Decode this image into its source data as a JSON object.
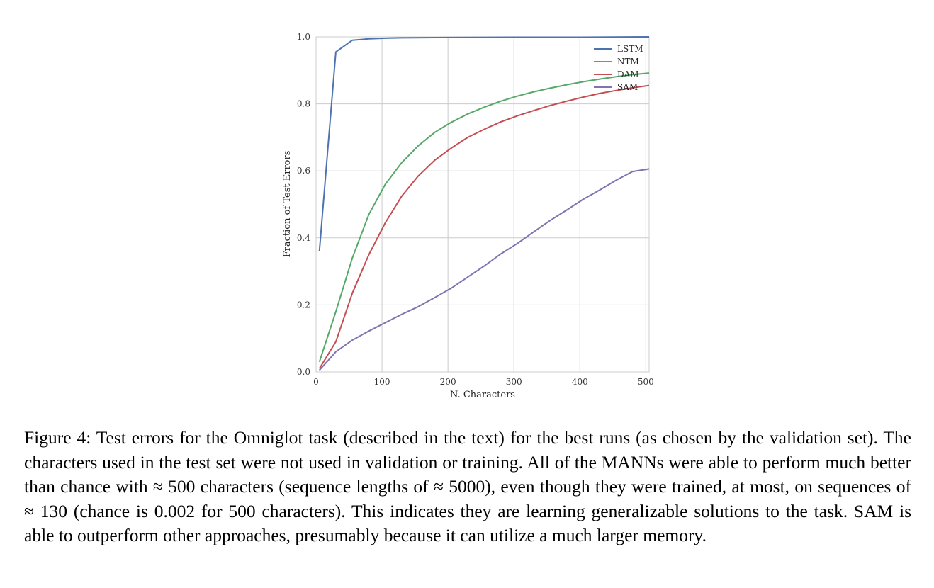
{
  "chart_data": {
    "type": "line",
    "title": "",
    "xlabel": "N. Characters",
    "ylabel": "Fraction of Test Errors",
    "xlim": [
      0,
      505
    ],
    "ylim": [
      0,
      1.0
    ],
    "xticks": [
      0,
      100,
      200,
      300,
      400,
      500
    ],
    "yticks": [
      0.0,
      0.2,
      0.4,
      0.6,
      0.8,
      1.0
    ],
    "grid": true,
    "legend_position": "top-right",
    "series": [
      {
        "name": "LSTM",
        "color": "#4c72b0",
        "x": [
          5,
          30,
          55,
          80,
          105,
          130,
          200,
          300,
          400,
          505
        ],
        "y": [
          0.36,
          0.955,
          0.99,
          0.994,
          0.996,
          0.997,
          0.998,
          0.999,
          0.999,
          1.0
        ]
      },
      {
        "name": "NTM",
        "color": "#55a868",
        "x": [
          5,
          30,
          55,
          80,
          105,
          130,
          155,
          180,
          205,
          230,
          255,
          280,
          305,
          330,
          355,
          380,
          405,
          430,
          455,
          480,
          505
        ],
        "y": [
          0.03,
          0.18,
          0.34,
          0.47,
          0.56,
          0.625,
          0.675,
          0.715,
          0.745,
          0.77,
          0.79,
          0.808,
          0.823,
          0.836,
          0.847,
          0.857,
          0.866,
          0.874,
          0.881,
          0.887,
          0.892
        ]
      },
      {
        "name": "DAM",
        "color": "#c44e52",
        "x": [
          5,
          30,
          55,
          80,
          105,
          130,
          155,
          180,
          205,
          230,
          255,
          280,
          305,
          330,
          355,
          380,
          405,
          430,
          455,
          480,
          505
        ],
        "y": [
          0.01,
          0.09,
          0.235,
          0.35,
          0.445,
          0.525,
          0.585,
          0.632,
          0.668,
          0.7,
          0.724,
          0.746,
          0.764,
          0.78,
          0.795,
          0.808,
          0.82,
          0.831,
          0.84,
          0.848,
          0.855
        ]
      },
      {
        "name": "SAM",
        "color": "#8172b2",
        "x": [
          5,
          30,
          55,
          80,
          105,
          130,
          155,
          180,
          205,
          230,
          255,
          280,
          305,
          330,
          355,
          380,
          405,
          430,
          455,
          480,
          505
        ],
        "y": [
          0.005,
          0.06,
          0.095,
          0.122,
          0.147,
          0.172,
          0.195,
          0.222,
          0.25,
          0.283,
          0.316,
          0.352,
          0.383,
          0.418,
          0.452,
          0.483,
          0.515,
          0.543,
          0.572,
          0.598,
          0.606
        ]
      }
    ]
  },
  "caption": "Figure 4: Test errors for the Omniglot task (described in the text) for the best runs (as chosen by the validation set). The characters used in the test set were not used in validation or training. All of the MANNs were able to perform much better than chance with ≈ 500 characters (sequence lengths of ≈ 5000), even though they were trained, at most, on sequences of ≈ 130 (chance is 0.002 for 500 characters). This indicates they are learning generalizable solutions to the task. SAM is able to outperform other approaches, presumably because it can utilize a much larger memory."
}
